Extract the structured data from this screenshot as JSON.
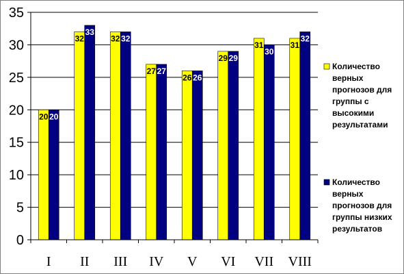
{
  "chart_data": {
    "type": "bar",
    "title": "",
    "xlabel": "",
    "ylabel": "",
    "categories": [
      "I",
      "II",
      "III",
      "IV",
      "V",
      "VI",
      "VII",
      "VIII"
    ],
    "series": [
      {
        "name": "Количество верных прогнозов для группы с высокими результатами",
        "name_lines": [
          "Количество",
          "верных",
          "прогнозов для",
          "группы с",
          "высокими",
          "результатами"
        ],
        "color": "#ffff00",
        "label_color": "#000000",
        "values": [
          20,
          32,
          32,
          27,
          26,
          29,
          31,
          31
        ]
      },
      {
        "name": "Количество верных прогнозов для группы низких результатов",
        "name_lines": [
          "Количество",
          "верных",
          "прогнозов для",
          "группы низких",
          "результатов"
        ],
        "color": "#000080",
        "label_color": "#ffffff",
        "values": [
          20,
          33,
          32,
          27,
          26,
          29,
          30,
          32
        ]
      }
    ],
    "ylim": [
      0,
      35
    ],
    "yticks": [
      0,
      5,
      10,
      15,
      20,
      25,
      30,
      35
    ],
    "grid": true,
    "legend": "right",
    "data_labels": true
  }
}
